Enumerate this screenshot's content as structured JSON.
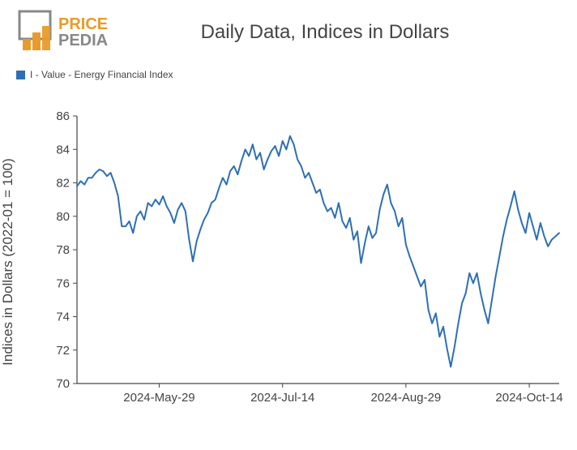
{
  "logo": {
    "text_top": "PRICE",
    "text_bottom": "PEDIA",
    "orange": "#e89b2a",
    "grey": "#888888"
  },
  "title": "Daily Data, Indices in Dollars",
  "legend": {
    "swatch_color": "#2e6fb4",
    "label": "I - Value - Energy Financial Index"
  },
  "chart": {
    "type": "line",
    "ylabel": "Indices in Dollars (2022-01 = 100)",
    "ylim": [
      70,
      86
    ],
    "ytick_step": 2,
    "yticks": [
      70,
      72,
      74,
      76,
      78,
      80,
      82,
      84,
      86
    ],
    "x_count": 130,
    "xticks": [
      {
        "pos": 22,
        "label": "2024-May-29"
      },
      {
        "pos": 55,
        "label": "2024-Jul-14"
      },
      {
        "pos": 88,
        "label": "2024-Aug-29"
      },
      {
        "pos": 121,
        "label": "2024-Oct-14"
      }
    ],
    "line_color": "#2e6fb4",
    "line_width": 2,
    "axis_color": "#444444",
    "background_color": "#ffffff",
    "text_color": "#444444",
    "title_fontsize": 24,
    "label_fontsize": 17,
    "tick_fontsize": 15,
    "values": [
      81.8,
      82.1,
      81.9,
      82.3,
      82.3,
      82.6,
      82.8,
      82.7,
      82.4,
      82.6,
      82.0,
      81.2,
      79.4,
      79.4,
      79.7,
      79.0,
      80.0,
      80.3,
      79.8,
      80.8,
      80.6,
      81.0,
      80.7,
      81.2,
      80.6,
      80.2,
      79.6,
      80.4,
      80.8,
      80.3,
      78.6,
      77.3,
      78.5,
      79.2,
      79.8,
      80.2,
      80.8,
      81.0,
      81.7,
      82.3,
      81.9,
      82.7,
      83.0,
      82.5,
      83.3,
      84.0,
      83.6,
      84.3,
      83.4,
      83.8,
      82.8,
      83.4,
      83.9,
      84.2,
      83.6,
      84.5,
      84.0,
      84.8,
      84.3,
      83.4,
      83.0,
      82.3,
      82.6,
      82.0,
      81.4,
      81.6,
      80.8,
      80.3,
      80.5,
      79.9,
      80.8,
      79.7,
      79.3,
      79.9,
      78.6,
      79.1,
      77.2,
      78.4,
      79.4,
      78.7,
      79.0,
      80.4,
      81.3,
      81.9,
      80.8,
      80.3,
      79.4,
      79.9,
      78.3,
      77.6,
      77.0,
      76.4,
      75.8,
      76.2,
      74.4,
      73.6,
      74.2,
      72.8,
      73.4,
      72.1,
      71.0,
      72.2,
      73.6,
      74.8,
      75.4,
      76.6,
      76.0,
      76.6,
      75.4,
      74.4,
      73.6,
      75.0,
      76.4,
      77.6,
      78.8,
      79.8,
      80.6,
      81.5,
      80.4,
      79.6,
      79.0,
      80.2,
      79.4,
      78.6,
      79.6,
      78.8,
      78.2,
      78.6,
      78.8,
      79.0
    ]
  }
}
